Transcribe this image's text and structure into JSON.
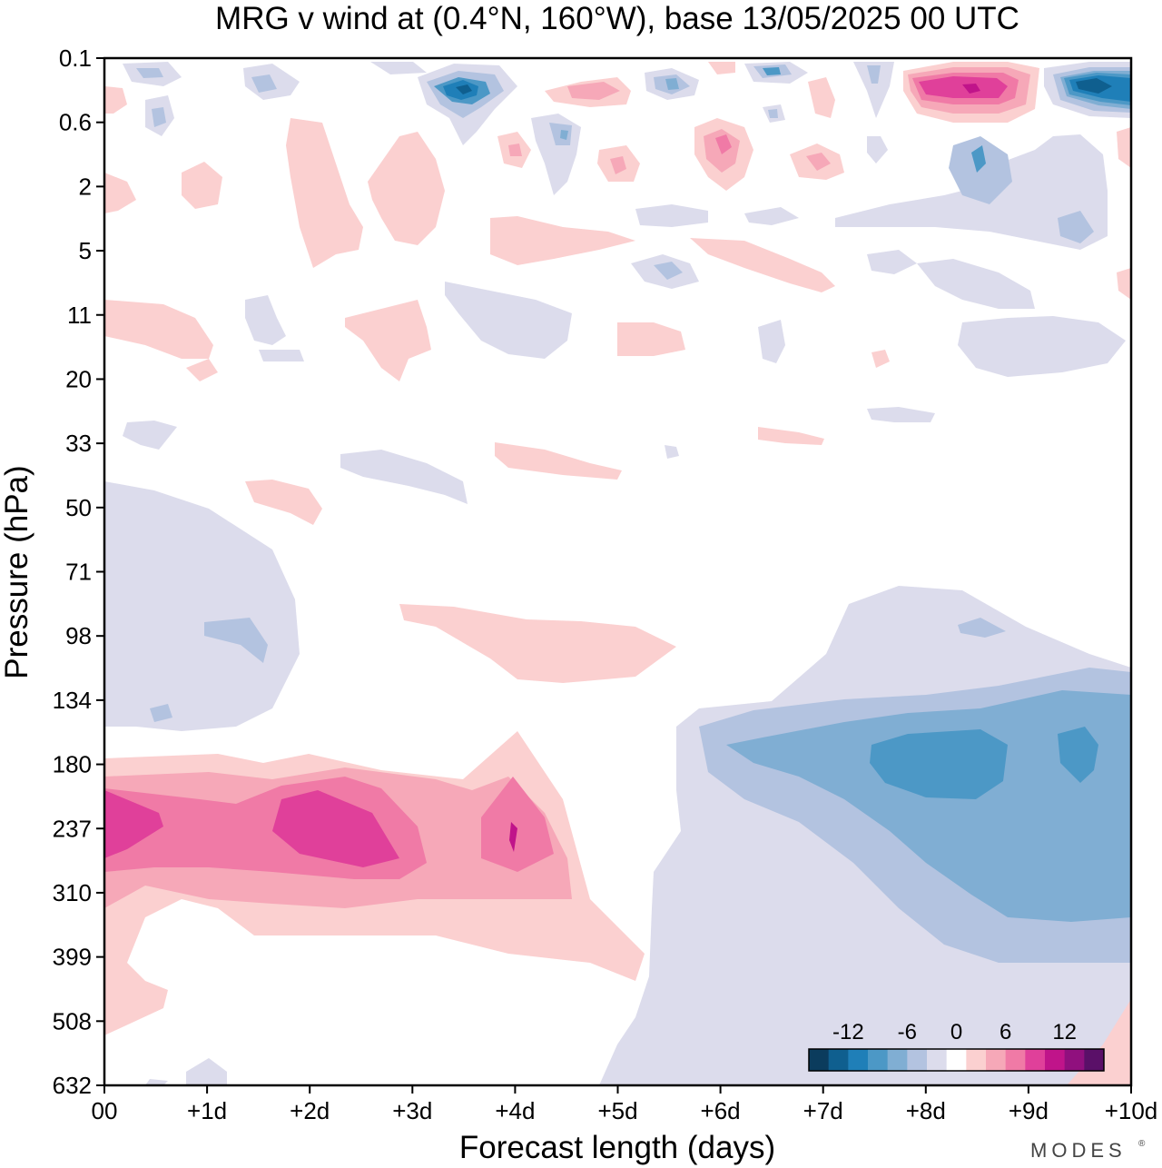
{
  "chart_data": {
    "type": "heatmap",
    "title": "MRG v wind at (0.4°N, 160°W),  base 13/05/2025  00 UTC",
    "xlabel": "Forecast length (days)",
    "ylabel": "Pressure (hPa)",
    "x_tick_labels": [
      "00",
      "+1d",
      "+2d",
      "+3d",
      "+4d",
      "+5d",
      "+6d",
      "+7d",
      "+8d",
      "+9d",
      "+10d"
    ],
    "xlim_days": [
      0,
      10
    ],
    "y_tick_labels": [
      "0.1",
      "0.6",
      "2",
      "5",
      "11",
      "20",
      "33",
      "50",
      "71",
      "98",
      "134",
      "180",
      "237",
      "310",
      "399",
      "508",
      "632"
    ],
    "y_scale": "log-pressure, top 0.1 hPa to bottom 632 hPa",
    "contour_levels": [
      -14,
      -12,
      -10,
      -8,
      -6,
      -4,
      -2,
      2,
      4,
      6,
      8,
      10,
      12,
      14
    ],
    "colorbar": {
      "labels": [
        {
          "text": "-12",
          "value": -12
        },
        {
          "text": "-6",
          "value": -6
        },
        {
          "text": "0",
          "value": 0
        },
        {
          "text": "6",
          "value": 6
        },
        {
          "text": "12",
          "value": 12
        }
      ],
      "colors": [
        "#0b3c5d",
        "#0f5f8f",
        "#1f7fb8",
        "#4c98c6",
        "#80aed3",
        "#b3c3e0",
        "#dcdcec",
        "#ffffff",
        "#fbd0d0",
        "#f6a8b8",
        "#f07aa6",
        "#e0409a",
        "#c0148a",
        "#90107e",
        "#5a1068"
      ],
      "placement": "bottom-right"
    },
    "features": [
      {
        "sign": "positive",
        "peak": 10,
        "x_days": [
          0,
          4.8
        ],
        "pressure_hpa": [
          180,
          420
        ],
        "note": "positive v maximum near 237 hPa, days 0–4"
      },
      {
        "sign": "negative",
        "peak": -8,
        "x_days": [
          5.5,
          10
        ],
        "pressure_hpa": [
          134,
          500
        ],
        "note": "negative v region near 180–310 hPa, days 6–10"
      },
      {
        "sign": "negative",
        "peak": -12,
        "x_days": [
          3,
          4
        ],
        "pressure_hpa": [
          0.2,
          0.6
        ],
        "note": "upper-level negative core near day 3.5"
      },
      {
        "sign": "positive",
        "peak": 10,
        "x_days": [
          8,
          9
        ],
        "pressure_hpa": [
          0.2,
          0.6
        ],
        "note": "upper-level positive core near day 8.5"
      },
      {
        "sign": "negative",
        "peak": -12,
        "x_days": [
          9.3,
          10
        ],
        "pressure_hpa": [
          0.2,
          0.6
        ],
        "note": "upper-level negative core near day 9.7"
      },
      {
        "sign": "positive",
        "peak": 3,
        "x_days": [
          3,
          5.6
        ],
        "pressure_hpa": [
          80,
          130
        ],
        "note": "weak positive band near 98 hPa"
      },
      {
        "sign": "negative",
        "peak": -3,
        "x_days": [
          0,
          2
        ],
        "pressure_hpa": [
          50,
          150
        ],
        "note": "weak negative region near 71–134 hPa"
      }
    ]
  },
  "branding": {
    "text": "MODES",
    "mark": "®"
  }
}
